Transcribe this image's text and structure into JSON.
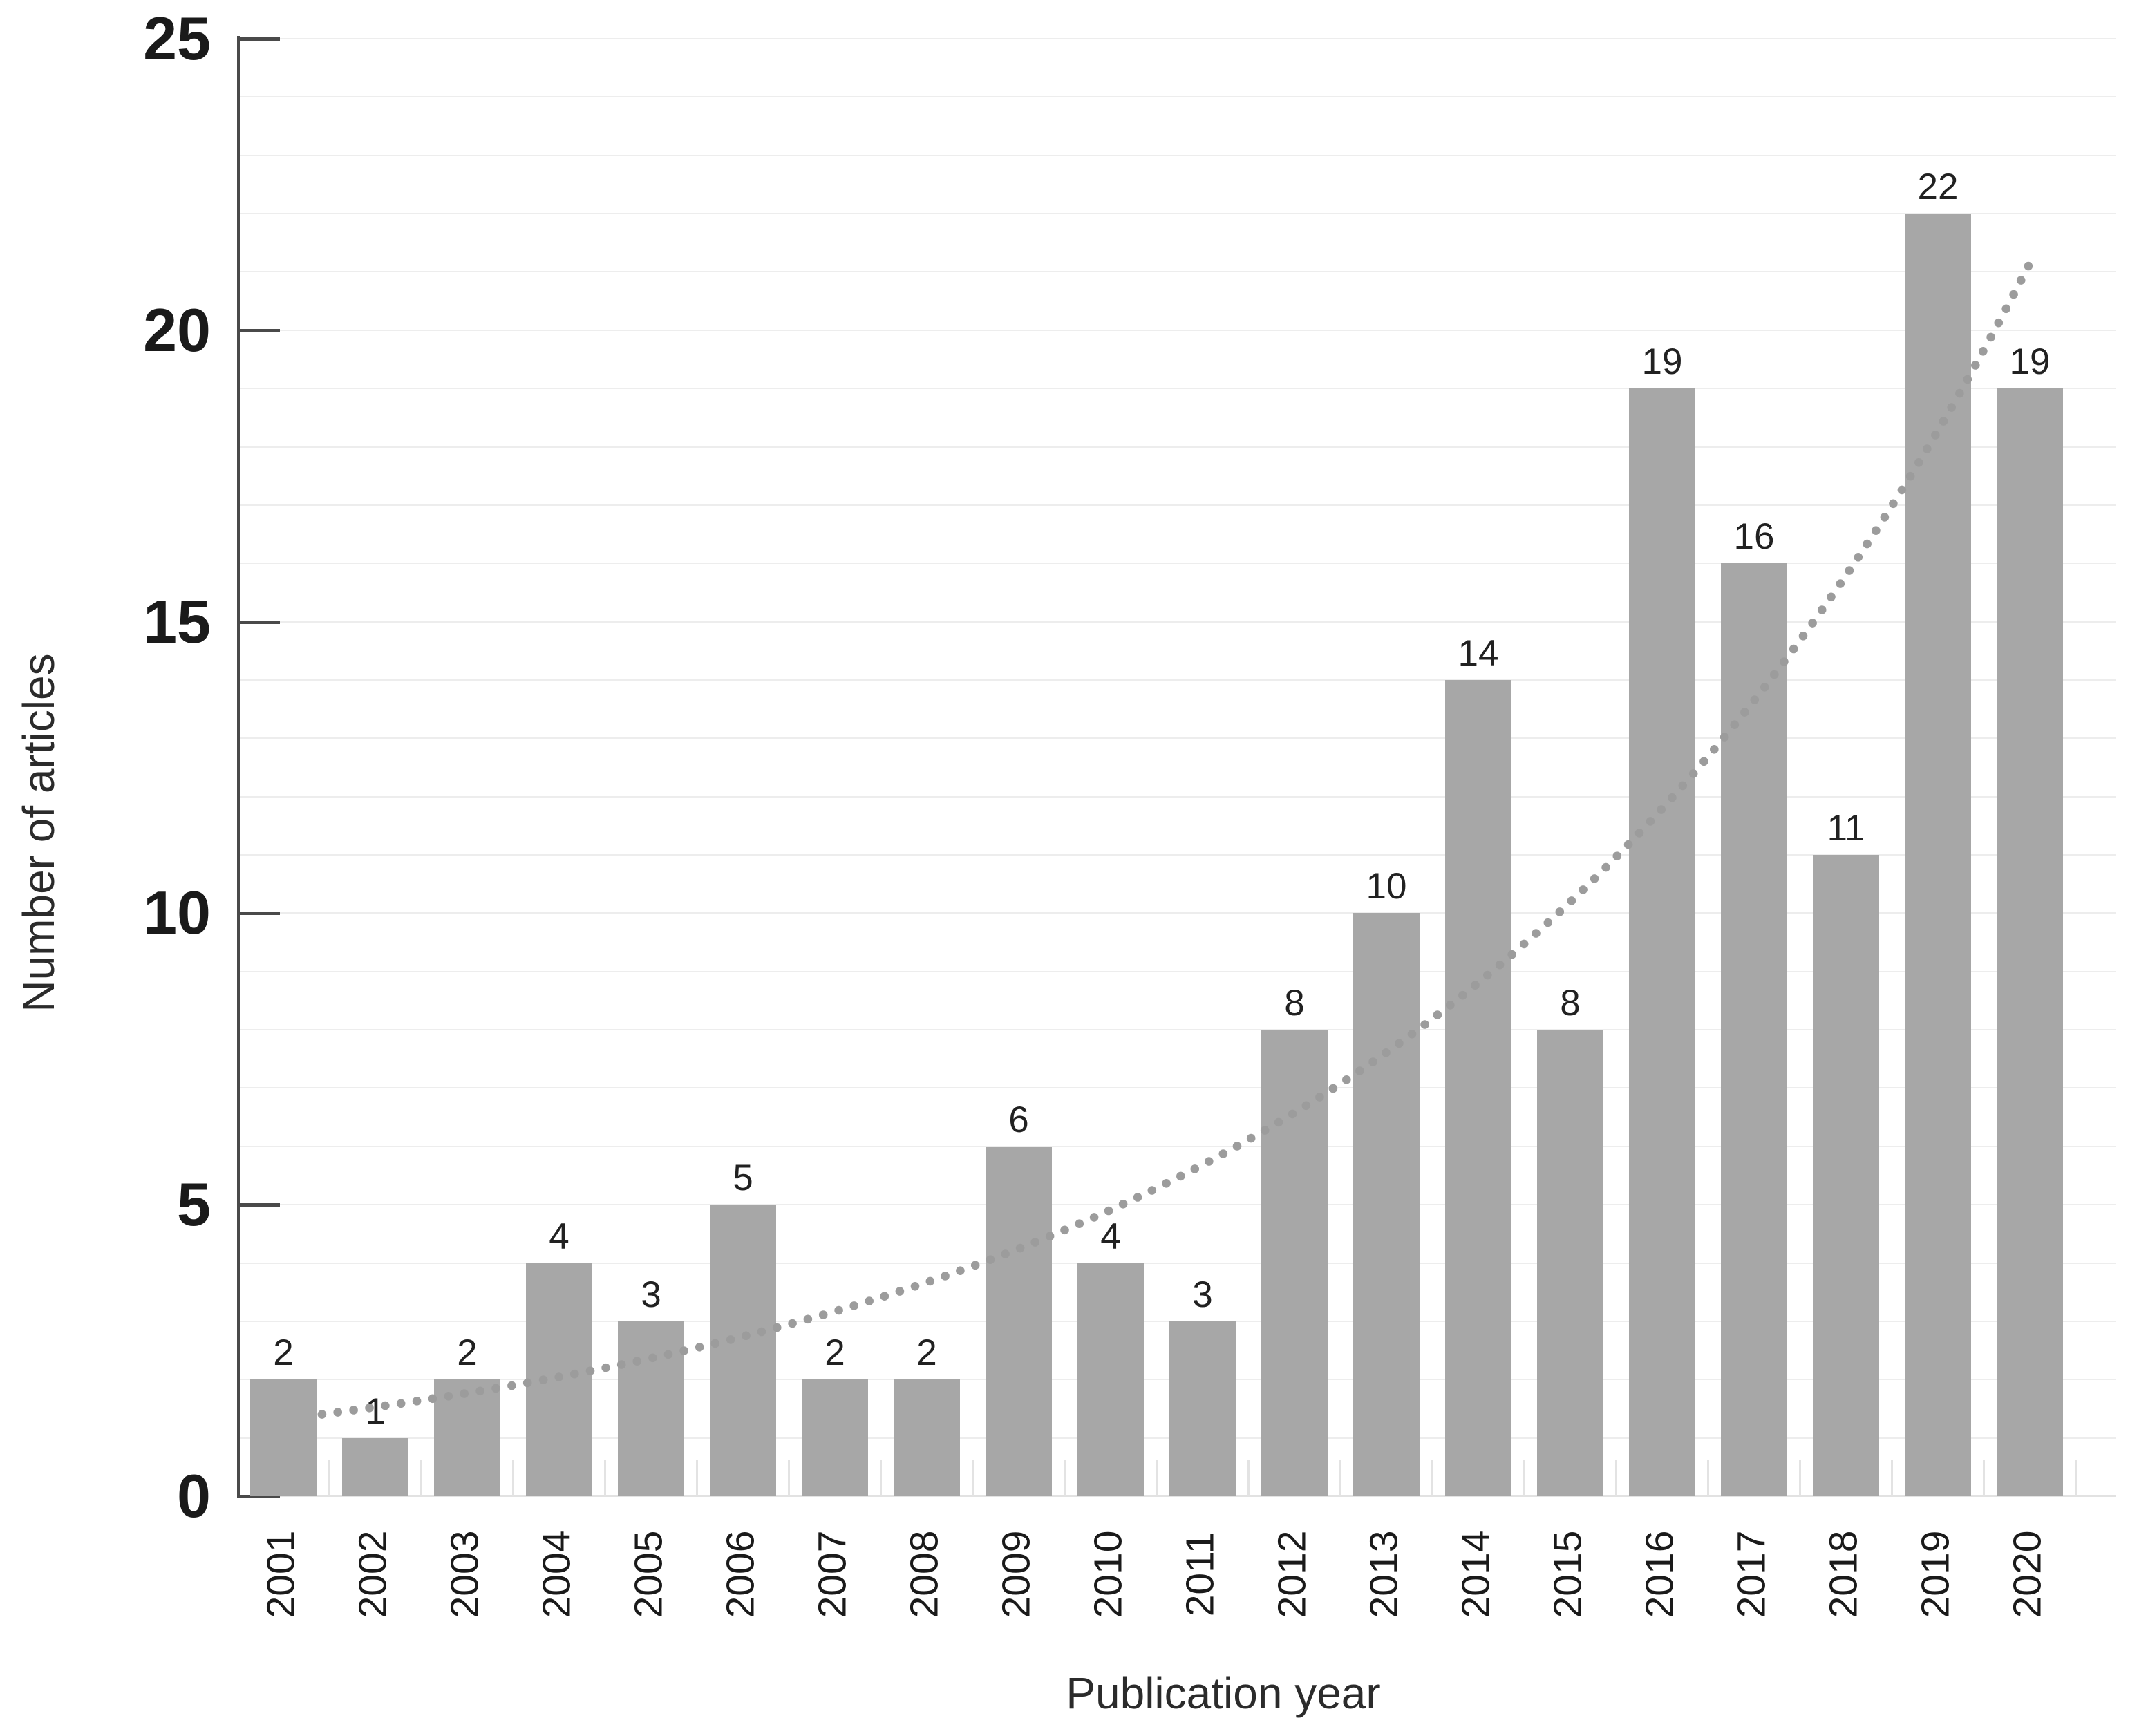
{
  "chart_data": {
    "type": "bar",
    "title": "",
    "xlabel": "Publication year",
    "ylabel": "Number of articles",
    "categories": [
      "2001",
      "2002",
      "2003",
      "2004",
      "2005",
      "2006",
      "2007",
      "2008",
      "2009",
      "2010",
      "2011",
      "2012",
      "2013",
      "2014",
      "2015",
      "2016",
      "2017",
      "2018",
      "2019",
      "2020"
    ],
    "values": [
      2,
      1,
      2,
      4,
      3,
      5,
      2,
      2,
      6,
      4,
      3,
      8,
      10,
      14,
      8,
      19,
      16,
      11,
      22,
      19
    ],
    "value_labels": [
      "2",
      "1",
      "2",
      "4",
      "3",
      "5",
      "2",
      "2",
      "6",
      "4",
      "3",
      "8",
      "10",
      "14",
      "8",
      "19",
      "16",
      "11",
      "22",
      "19"
    ],
    "yticks": [
      "0",
      "5",
      "10",
      "15",
      "20",
      "25"
    ],
    "ytick_values": [
      0,
      5,
      10,
      15,
      20,
      25
    ],
    "ylim": [
      0,
      25
    ],
    "grid": "horizontal, every 1 unit",
    "legend": "none",
    "trendline": {
      "style": "dotted",
      "shape": "exponential",
      "a": 1.32,
      "b": 0.146,
      "start_index": 0.42,
      "end_index": 19.05,
      "start_value": 1.4,
      "end_value": 21.0
    },
    "colors": {
      "bar": "#a7a7a7",
      "trend_dot": "#9c9c9c",
      "gridline": "#ededed",
      "axis": "#4a4a4a",
      "value_label": "#212121",
      "tick_label": "#1a1a1a",
      "axis_title": "#2b2b2b",
      "background": "#ffffff"
    }
  }
}
